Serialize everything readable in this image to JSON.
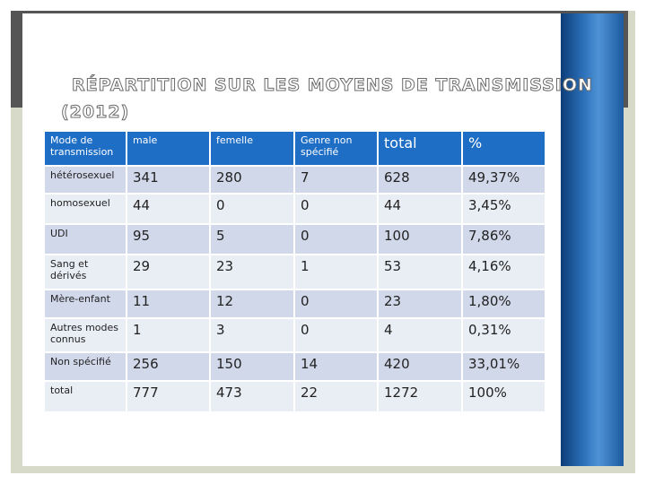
{
  "title": {
    "line1": "RÉPARTITION SUR LES MOYENS DE TRANSMISSION",
    "line2": "(2012)"
  },
  "table": {
    "header": [
      "Mode de transmission",
      "male",
      "femelle",
      "Genre non spécifié",
      "total",
      "%"
    ],
    "rows": [
      [
        "hétérosexuel",
        "341",
        "280",
        "7",
        "628",
        "49,37%"
      ],
      [
        "homosexuel",
        "44",
        "0",
        "0",
        "44",
        "3,45%"
      ],
      [
        "UDI",
        "95",
        "5",
        "0",
        "100",
        "7,86%"
      ],
      [
        "Sang et dérivés",
        "29",
        "23",
        "1",
        "53",
        "4,16%"
      ],
      [
        "Mère-enfant",
        "11",
        "12",
        "0",
        "23",
        "1,80%"
      ],
      [
        "Autres modes connus",
        "1",
        "3",
        "0",
        "4",
        "0,31%"
      ],
      [
        "Non spécifié",
        "256",
        "150",
        "14",
        "420",
        "33,01%"
      ],
      [
        "total",
        "777",
        "473",
        "22",
        "1272",
        "100%"
      ]
    ]
  }
}
